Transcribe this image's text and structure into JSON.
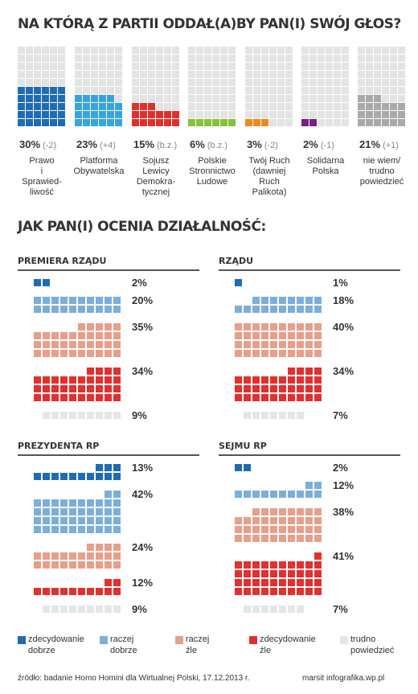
{
  "title1": "NA KTÓRĄ Z PARTII ODDAŁ(A)BY PAN(I) SWÓJ GŁOS?",
  "title2": "JAK PAN(I) OCENIA DZIAŁALNOŚĆ:",
  "colors": {
    "grey": "#e3e3e3",
    "pis": "#1f6bb3",
    "po": "#36a4e0",
    "sld": "#e0302d",
    "psl": "#84c23a",
    "tr": "#f0881f",
    "sp": "#7b1f86",
    "undecided": "#a9a9a9",
    "zdec_dobrze": "#1f6bb3",
    "raczej_dobrze": "#7bafd9",
    "raczej_zle": "#e79f8b",
    "zdec_zle": "#e2302f",
    "trudno": "#e6e6e6"
  },
  "chart_data": [
    {
      "type": "waffle",
      "title": "NA KTÓRĄ Z PARTII ODDAŁ(A)BY PAN(I) SWÓJ GŁOS?",
      "categories": [
        "Prawo i Sprawiedliwość",
        "Platforma Obywatelska",
        "Sojusz Lewicy Demokratycznej",
        "Polskie Stronnictwo Ludowe",
        "Twój Ruch (dawniej Ruch Palikota)",
        "Solidarna Polska",
        "nie wiem/ trudno powiedzieć"
      ],
      "values": [
        30,
        23,
        15,
        6,
        3,
        2,
        21
      ],
      "changes": [
        "(-2)",
        "(+4)",
        "(b.z.)",
        "(b.z.)",
        "(-2)",
        "(-1)",
        "(+1)"
      ],
      "unit": "%"
    },
    {
      "type": "waffle",
      "title": "JAK PAN(I) OCENIA DZIAŁALNOŚĆ:",
      "series_names": [
        "zdecydowanie dobrze",
        "raczej dobrze",
        "raczej źle",
        "zdecydowanie źle",
        "trudno powiedzieć"
      ],
      "panels": [
        {
          "name": "PREMIERA RZĄDU",
          "values": [
            2,
            20,
            35,
            34,
            9
          ]
        },
        {
          "name": "RZĄDU",
          "values": [
            1,
            18,
            40,
            34,
            7
          ]
        },
        {
          "name": "PREZYDENTA RP",
          "values": [
            13,
            42,
            24,
            12,
            9
          ]
        },
        {
          "name": "SEJMU RP",
          "values": [
            2,
            12,
            38,
            41,
            7
          ]
        }
      ],
      "unit": "%"
    }
  ],
  "parties": [
    {
      "label": "Prawo\ni\nSprawied-\nliwość",
      "pct": "30%",
      "chg": "(-2)"
    },
    {
      "label": "Platforma\nObywatelska",
      "pct": "23%",
      "chg": "(+4)"
    },
    {
      "label": "Sojusz\nLewicy\nDemokra-\ntycznej",
      "pct": "15%",
      "chg": "(b.z.)"
    },
    {
      "label": "Polskie\nStronnictwo\nLudowe",
      "pct": "6%",
      "chg": "(b.z.)"
    },
    {
      "label": "Twój Ruch\n(dawniej\nRuch\nPalikota)",
      "pct": "3%",
      "chg": "(-2)"
    },
    {
      "label": "Solidarna\nPolska",
      "pct": "2%",
      "chg": "(-1)"
    },
    {
      "label": "nie wiem/\ntrudno\npowiedzieć",
      "pct": "21%",
      "chg": "(+1)"
    }
  ],
  "panels": [
    {
      "title": "PREMIERA RZĄDU",
      "pcts": [
        "2%",
        "20%",
        "35%",
        "34%",
        "9%"
      ]
    },
    {
      "title": "RZĄDU",
      "pcts": [
        "1%",
        "18%",
        "40%",
        "34%",
        "7%"
      ]
    },
    {
      "title": "PREZYDENTA RP",
      "pcts": [
        "13%",
        "42%",
        "24%",
        "12%",
        "9%"
      ]
    },
    {
      "title": "SEJMU RP",
      "pcts": [
        "2%",
        "12%",
        "38%",
        "41%",
        "7%"
      ]
    }
  ],
  "legend": [
    {
      "label": "zdecydowanie\ndobrze",
      "color": "#1f6bb3"
    },
    {
      "label": "raczej\ndobrze",
      "color": "#7bafd9"
    },
    {
      "label": "raczej\nźle",
      "color": "#e79f8b"
    },
    {
      "label": "zdecydowanie\nźle",
      "color": "#e2302f"
    },
    {
      "label": "trudno\npowiedzieć",
      "color": "#e6e6e6"
    }
  ],
  "footer": {
    "source": "źródło: badanie Homo Homini dla Wirtualnej Polski, 17.12.2013 r.",
    "credit": "marsit infografika.wp.pl"
  }
}
